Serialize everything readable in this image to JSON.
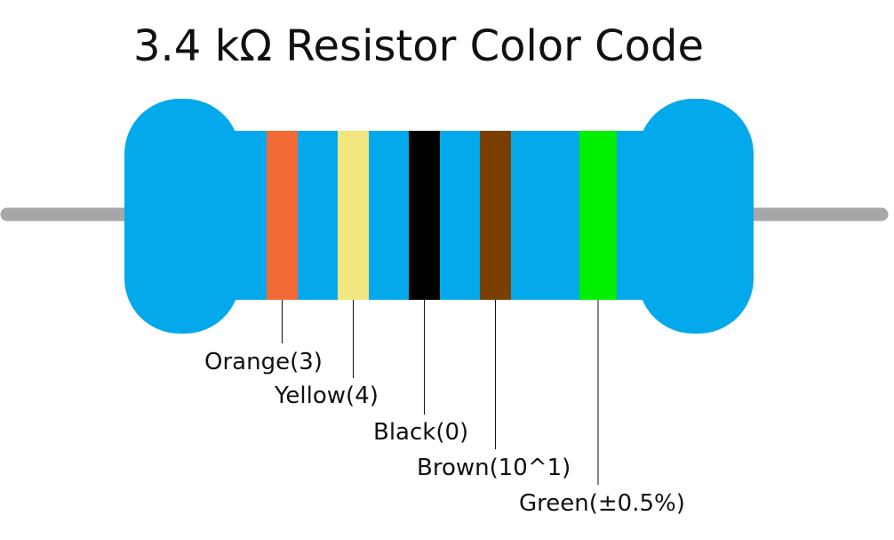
{
  "title": "3.4 kΩ Resistor Color Code",
  "colors": {
    "body": "#03a9ea",
    "lead": "#a7a7a9",
    "leader_line": "#111111"
  },
  "bands": [
    {
      "name": "Orange",
      "label": "Orange(3)",
      "color": "#f26a36"
    },
    {
      "name": "Yellow",
      "label": "Yellow(4)",
      "color": "#f2e680"
    },
    {
      "name": "Black",
      "label": "Black(0)",
      "color": "#000000"
    },
    {
      "name": "Brown",
      "label": "Brown(10^1)",
      "color": "#7a3f00"
    },
    {
      "name": "Green",
      "label": "Green(±0.5%)",
      "color": "#00f000"
    }
  ]
}
